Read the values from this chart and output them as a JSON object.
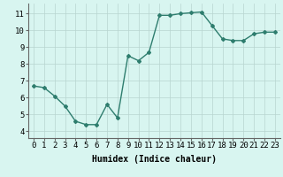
{
  "x": [
    0,
    1,
    2,
    3,
    4,
    5,
    6,
    7,
    8,
    9,
    10,
    11,
    12,
    13,
    14,
    15,
    16,
    17,
    18,
    19,
    20,
    21,
    22,
    23
  ],
  "y": [
    6.7,
    6.6,
    6.1,
    5.5,
    4.6,
    4.4,
    4.4,
    5.6,
    4.8,
    8.5,
    8.2,
    8.7,
    10.9,
    10.9,
    11.0,
    11.05,
    11.1,
    10.3,
    9.5,
    9.4,
    9.4,
    9.8,
    9.9,
    9.9
  ],
  "line_color": "#2e7d6e",
  "marker": "D",
  "marker_size": 2.0,
  "bg_color": "#d8f5f0",
  "grid_color": "#b8d4d0",
  "xlabel": "Humidex (Indice chaleur)",
  "ylim": [
    3.6,
    11.6
  ],
  "xlim": [
    -0.5,
    23.5
  ],
  "yticks": [
    4,
    5,
    6,
    7,
    8,
    9,
    10,
    11
  ],
  "xticks": [
    0,
    1,
    2,
    3,
    4,
    5,
    6,
    7,
    8,
    9,
    10,
    11,
    12,
    13,
    14,
    15,
    16,
    17,
    18,
    19,
    20,
    21,
    22,
    23
  ],
  "xlabel_fontsize": 7,
  "tick_fontsize": 6.5,
  "line_width": 1.0
}
